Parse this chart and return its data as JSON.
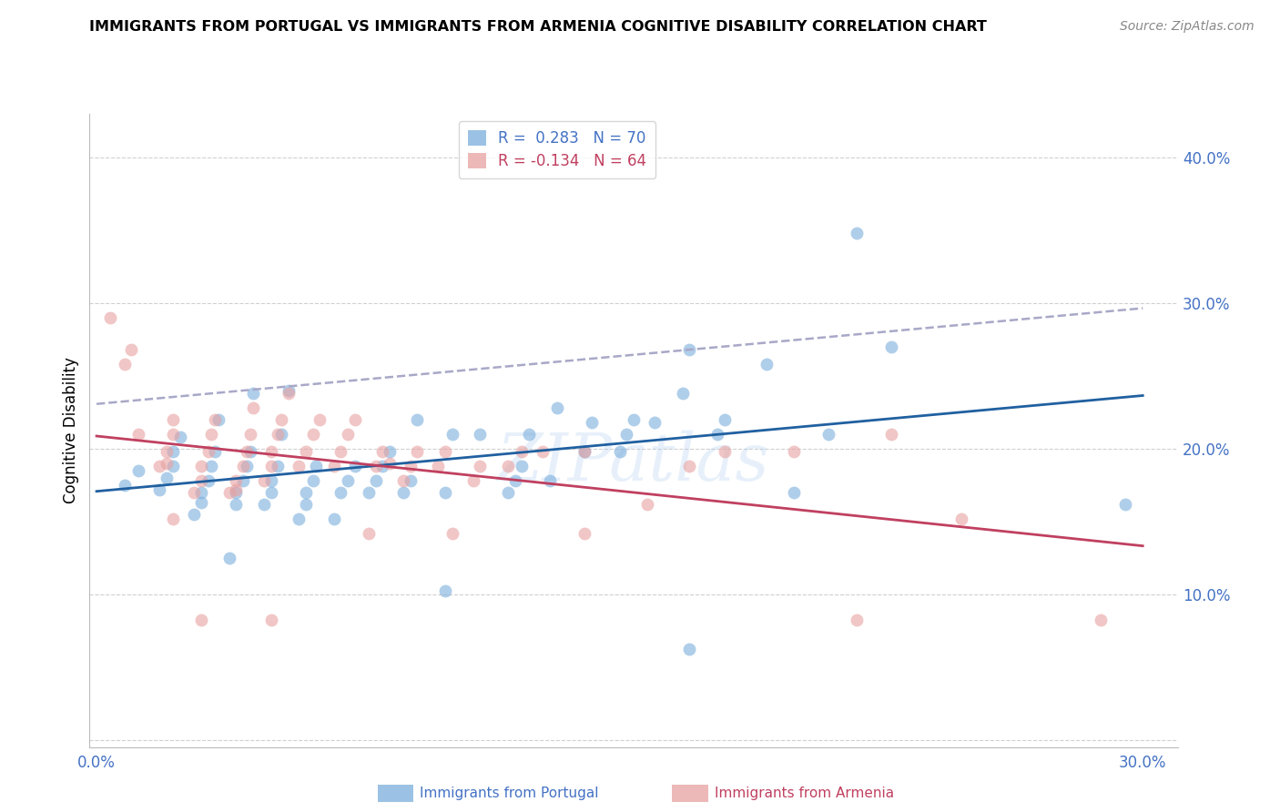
{
  "title": "IMMIGRANTS FROM PORTUGAL VS IMMIGRANTS FROM ARMENIA COGNITIVE DISABILITY CORRELATION CHART",
  "source": "Source: ZipAtlas.com",
  "ylabel": "Cognitive Disability",
  "y_ticks": [
    0.0,
    0.1,
    0.2,
    0.3,
    0.4
  ],
  "y_tick_labels": [
    "",
    "10.0%",
    "20.0%",
    "30.0%",
    "40.0%"
  ],
  "x_ticks": [
    0.0,
    0.05,
    0.1,
    0.15,
    0.2,
    0.25,
    0.3
  ],
  "x_tick_labels": [
    "0.0%",
    "",
    "",
    "",
    "",
    "",
    "30.0%"
  ],
  "xlim": [
    -0.002,
    0.31
  ],
  "ylim": [
    -0.005,
    0.43
  ],
  "legend_line1": "R =  0.283   N = 70",
  "legend_line2": "R = -0.134   N = 64",
  "color_portugal": "#7aaedc",
  "color_armenia": "#e8a0a0",
  "trendline_portugal_color": "#2060a0",
  "trendline_armenia_color": "#c04060",
  "trendline_dashed_color": "#a8a8c8",
  "background_color": "#ffffff",
  "grid_color": "#d0d0d0",
  "tick_color": "#4472c4",
  "armenia_label_color": "#c04060",
  "portugal_points_x": [
    0.008,
    0.012,
    0.018,
    0.02,
    0.022,
    0.022,
    0.024,
    0.028,
    0.03,
    0.03,
    0.032,
    0.033,
    0.034,
    0.035,
    0.038,
    0.04,
    0.04,
    0.042,
    0.043,
    0.044,
    0.045,
    0.048,
    0.05,
    0.05,
    0.052,
    0.053,
    0.055,
    0.058,
    0.06,
    0.06,
    0.062,
    0.063,
    0.068,
    0.07,
    0.072,
    0.074,
    0.078,
    0.08,
    0.082,
    0.084,
    0.088,
    0.09,
    0.092,
    0.1,
    0.1,
    0.102,
    0.11,
    0.118,
    0.12,
    0.122,
    0.124,
    0.13,
    0.132,
    0.14,
    0.142,
    0.15,
    0.152,
    0.154,
    0.16,
    0.168,
    0.17,
    0.178,
    0.18,
    0.192,
    0.2,
    0.21,
    0.218,
    0.228,
    0.17,
    0.295
  ],
  "portugal_points_y": [
    0.175,
    0.185,
    0.172,
    0.18,
    0.188,
    0.198,
    0.208,
    0.155,
    0.163,
    0.17,
    0.178,
    0.188,
    0.198,
    0.22,
    0.125,
    0.162,
    0.17,
    0.178,
    0.188,
    0.198,
    0.238,
    0.162,
    0.17,
    0.178,
    0.188,
    0.21,
    0.24,
    0.152,
    0.162,
    0.17,
    0.178,
    0.188,
    0.152,
    0.17,
    0.178,
    0.188,
    0.17,
    0.178,
    0.188,
    0.198,
    0.17,
    0.178,
    0.22,
    0.102,
    0.17,
    0.21,
    0.21,
    0.17,
    0.178,
    0.188,
    0.21,
    0.178,
    0.228,
    0.198,
    0.218,
    0.198,
    0.21,
    0.22,
    0.218,
    0.238,
    0.268,
    0.21,
    0.22,
    0.258,
    0.17,
    0.21,
    0.348,
    0.27,
    0.062,
    0.162
  ],
  "armenia_points_x": [
    0.004,
    0.008,
    0.01,
    0.012,
    0.018,
    0.02,
    0.02,
    0.022,
    0.022,
    0.022,
    0.028,
    0.03,
    0.03,
    0.032,
    0.033,
    0.034,
    0.038,
    0.04,
    0.04,
    0.042,
    0.043,
    0.044,
    0.045,
    0.048,
    0.05,
    0.05,
    0.052,
    0.053,
    0.055,
    0.058,
    0.06,
    0.062,
    0.064,
    0.068,
    0.07,
    0.072,
    0.074,
    0.078,
    0.08,
    0.082,
    0.084,
    0.088,
    0.09,
    0.092,
    0.098,
    0.1,
    0.102,
    0.108,
    0.11,
    0.118,
    0.122,
    0.128,
    0.14,
    0.158,
    0.17,
    0.18,
    0.2,
    0.218,
    0.14,
    0.228,
    0.248,
    0.288,
    0.05,
    0.03
  ],
  "armenia_points_y": [
    0.29,
    0.258,
    0.268,
    0.21,
    0.188,
    0.19,
    0.198,
    0.21,
    0.22,
    0.152,
    0.17,
    0.178,
    0.188,
    0.198,
    0.21,
    0.22,
    0.17,
    0.172,
    0.178,
    0.188,
    0.198,
    0.21,
    0.228,
    0.178,
    0.188,
    0.198,
    0.21,
    0.22,
    0.238,
    0.188,
    0.198,
    0.21,
    0.22,
    0.188,
    0.198,
    0.21,
    0.22,
    0.142,
    0.188,
    0.198,
    0.19,
    0.178,
    0.188,
    0.198,
    0.188,
    0.198,
    0.142,
    0.178,
    0.188,
    0.188,
    0.198,
    0.198,
    0.198,
    0.162,
    0.188,
    0.198,
    0.198,
    0.082,
    0.142,
    0.21,
    0.152,
    0.082,
    0.082,
    0.082
  ]
}
